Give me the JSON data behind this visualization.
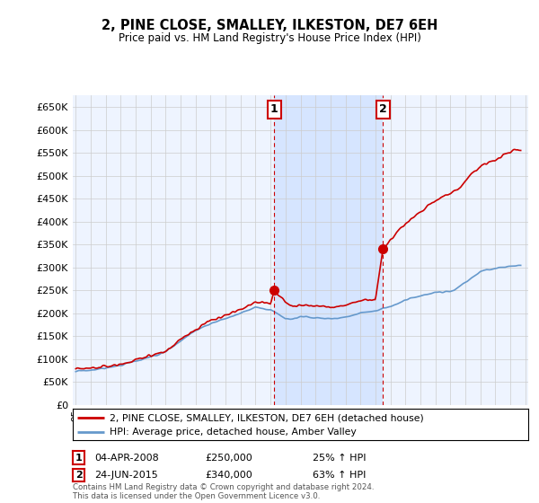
{
  "title": "2, PINE CLOSE, SMALLEY, ILKESTON, DE7 6EH",
  "subtitle": "Price paid vs. HM Land Registry's House Price Index (HPI)",
  "ylim": [
    0,
    675000
  ],
  "yticks": [
    0,
    50000,
    100000,
    150000,
    200000,
    250000,
    300000,
    350000,
    400000,
    450000,
    500000,
    550000,
    600000,
    650000
  ],
  "sale1_year": 2008.25,
  "sale1_price": 250000,
  "sale1_label": "1",
  "sale1_date": "04-APR-2008",
  "sale1_pct": "25% ↑ HPI",
  "sale2_year": 2015.5,
  "sale2_price": 340000,
  "sale2_label": "2",
  "sale2_date": "24-JUN-2015",
  "sale2_pct": "63% ↑ HPI",
  "house_color": "#cc0000",
  "hpi_color": "#6699cc",
  "hpi_fill_color": "#ddeeff",
  "highlight_fill_color": "#cce0ff",
  "grid_color": "#cccccc",
  "bg_color": "#eef4ff",
  "legend_label_house": "2, PINE CLOSE, SMALLEY, ILKESTON, DE7 6EH (detached house)",
  "legend_label_hpi": "HPI: Average price, detached house, Amber Valley",
  "footer": "Contains HM Land Registry data © Crown copyright and database right 2024.\nThis data is licensed under the Open Government Licence v3.0.",
  "sale_box_color": "#cc0000",
  "vline_color": "#cc0000",
  "xmin": 1995,
  "xmax": 2025
}
